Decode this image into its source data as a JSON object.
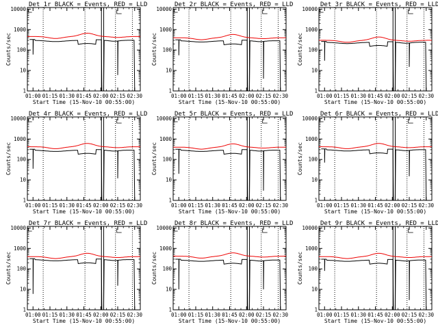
{
  "chart_data": {
    "type": "line",
    "layout": "3x3 grid of panels",
    "x_tick_labels": [
      "01:00",
      "01:15",
      "01:30",
      "01:45",
      "02:00",
      "02:15",
      "02:30"
    ],
    "x_tick_minutes": [
      60,
      75,
      90,
      105,
      120,
      135,
      150
    ],
    "x_range_minutes": [
      55,
      155
    ],
    "xlabel": "Start Time (15-Nov-10 00:55:00)",
    "ylabel": "Counts/sec",
    "y_scale": "log",
    "y_range": [
      1,
      12000
    ],
    "y_tick_labels": [
      "1",
      "10",
      "100",
      "1000",
      "10000"
    ],
    "y_tick_values": [
      1,
      10,
      100,
      1000,
      10000
    ],
    "dotted_vertical_lines_minutes": [
      69,
      106,
      133,
      148
    ],
    "solid_vertical_lines_minutes": [
      120.6,
      122.6
    ],
    "series_colors": {
      "events": "#000000",
      "lld": "#ee0000"
    },
    "panels": [
      {
        "title": "Det 1r BLACK = Events, RED = LLD",
        "lld_scale": 1.15,
        "events_scale": 1.0,
        "drops": [
          [
            60,
            60
          ],
          [
            135,
            6
          ]
        ]
      },
      {
        "title": "Det 2r BLACK = Events, RED = LLD",
        "lld_scale": 1.0,
        "events_scale": 0.95,
        "drops": [
          [
            60,
            55
          ],
          [
            135,
            4
          ]
        ]
      },
      {
        "title": "Det 3r BLACK = Events, RED = LLD",
        "lld_scale": 0.75,
        "events_scale": 0.8,
        "drops": [
          [
            60,
            30
          ],
          [
            135,
            15
          ]
        ]
      },
      {
        "title": "Det 4r BLACK = Events, RED = LLD",
        "lld_scale": 1.05,
        "events_scale": 0.95,
        "drops": [
          [
            60,
            35
          ],
          [
            135,
            12
          ]
        ]
      },
      {
        "title": "Det 5r BLACK = Events, RED = LLD",
        "lld_scale": 1.0,
        "events_scale": 0.95,
        "drops": [
          [
            60,
            20
          ],
          [
            135,
            3
          ]
        ]
      },
      {
        "title": "Det 6r BLACK = Events, RED = LLD",
        "lld_scale": 1.05,
        "events_scale": 1.0,
        "drops": [
          [
            60,
            70
          ],
          [
            135,
            15
          ]
        ]
      },
      {
        "title": "Det 7r BLACK = Events, RED = LLD",
        "lld_scale": 1.0,
        "events_scale": 0.95,
        "drops": [
          [
            60,
            6
          ],
          [
            135,
            15
          ]
        ]
      },
      {
        "title": "Det 8r BLACK = Events, RED = LLD",
        "lld_scale": 1.05,
        "events_scale": 0.9,
        "drops": [
          [
            60,
            10
          ],
          [
            135,
            10
          ]
        ]
      },
      {
        "title": "Det 9r BLACK = Events, RED = LLD",
        "lld_scale": 1.0,
        "events_scale": 0.9,
        "drops": [
          [
            60,
            80
          ],
          [
            135,
            3
          ]
        ]
      }
    ]
  }
}
